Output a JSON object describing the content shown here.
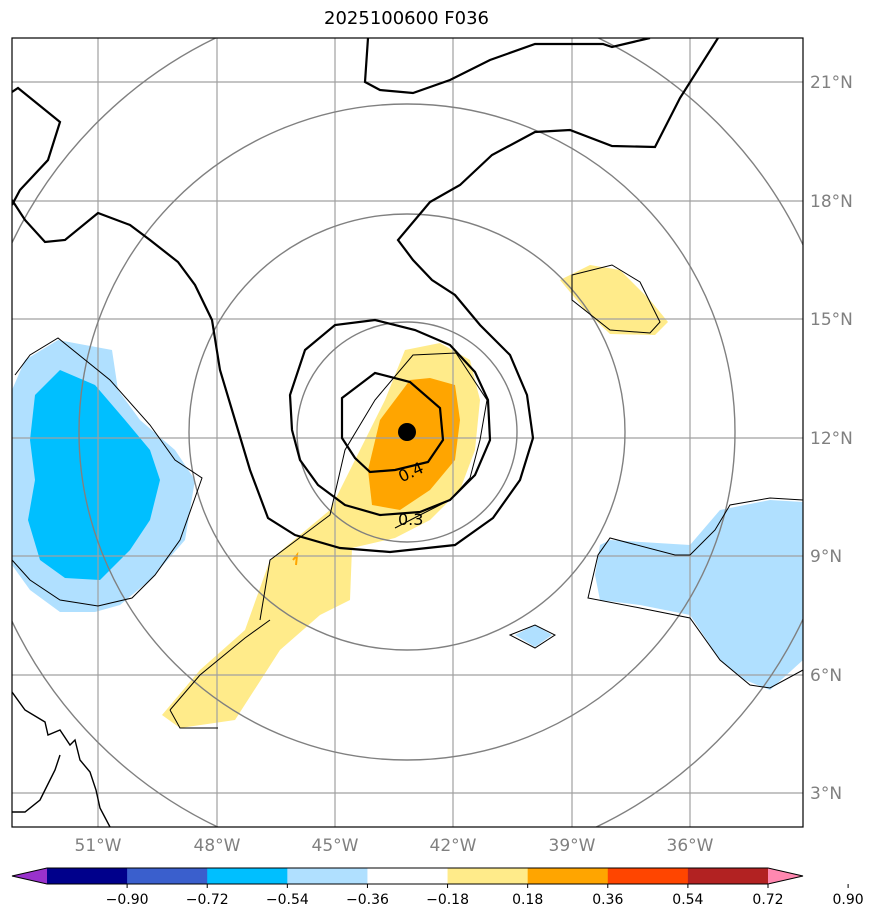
{
  "title": "2025100600 F036",
  "map": {
    "lat_labels": [
      "21°N",
      "18°N",
      "15°N",
      "12°N",
      "9°N",
      "6°N",
      "3°N"
    ],
    "lon_labels": [
      "51°W",
      "48°W",
      "45°W",
      "42°W",
      "39°W",
      "36°W"
    ],
    "contour_labels": [
      "0.4",
      "0.3"
    ],
    "center_marker": "storm-center-dot"
  },
  "colorbar": {
    "ticks": [
      "−0.90",
      "−0.72",
      "−0.54",
      "−0.36",
      "−0.18",
      "0.18",
      "0.36",
      "0.54",
      "0.72",
      "0.90"
    ],
    "colors": [
      "#9932cc",
      "#00008b",
      "#3a5fcd",
      "#00bfff",
      "#b0e0ff",
      "#ffffff",
      "#ffeb8a",
      "#ffa500",
      "#ff4500",
      "#b22222",
      "#ff88b0"
    ]
  }
}
